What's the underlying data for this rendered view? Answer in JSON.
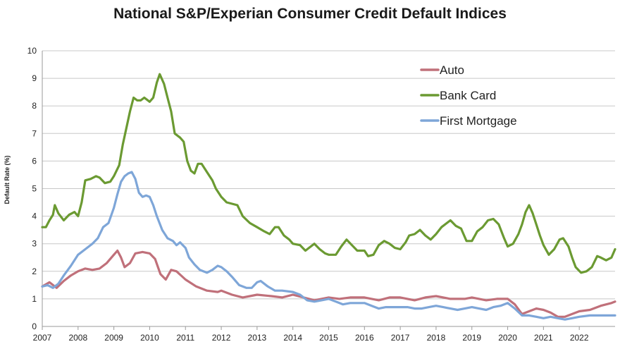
{
  "chart_data": {
    "type": "line",
    "title": "National S&P/Experian Consumer Credit Default Indices",
    "ylabel": "Default Rate (%)",
    "xlabel": "",
    "ylim": [
      0,
      10
    ],
    "xlim": [
      2007,
      2023
    ],
    "yticks": [
      "0",
      "1",
      "2",
      "3",
      "4",
      "5",
      "6",
      "7",
      "8",
      "9",
      "10"
    ],
    "xticks": [
      "2007",
      "2008",
      "2009",
      "2010",
      "2011",
      "2012",
      "2013",
      "2014",
      "2015",
      "2016",
      "2017",
      "2018",
      "2019",
      "2020",
      "2021",
      "2022"
    ],
    "grid": "horizontal",
    "legend_position": "top-right",
    "series": [
      {
        "name": "Auto",
        "color": "#c0707a",
        "points": [
          [
            2007.0,
            1.45
          ],
          [
            2007.2,
            1.6
          ],
          [
            2007.4,
            1.4
          ],
          [
            2007.6,
            1.65
          ],
          [
            2007.8,
            1.85
          ],
          [
            2008.0,
            2.0
          ],
          [
            2008.2,
            2.1
          ],
          [
            2008.4,
            2.05
          ],
          [
            2008.6,
            2.1
          ],
          [
            2008.8,
            2.3
          ],
          [
            2009.0,
            2.6
          ],
          [
            2009.1,
            2.75
          ],
          [
            2009.2,
            2.5
          ],
          [
            2009.3,
            2.15
          ],
          [
            2009.45,
            2.3
          ],
          [
            2009.6,
            2.65
          ],
          [
            2009.8,
            2.7
          ],
          [
            2010.0,
            2.65
          ],
          [
            2010.15,
            2.45
          ],
          [
            2010.3,
            1.9
          ],
          [
            2010.45,
            1.7
          ],
          [
            2010.6,
            2.05
          ],
          [
            2010.75,
            2.0
          ],
          [
            2011.0,
            1.7
          ],
          [
            2011.3,
            1.45
          ],
          [
            2011.6,
            1.3
          ],
          [
            2011.9,
            1.25
          ],
          [
            2012.0,
            1.3
          ],
          [
            2012.3,
            1.15
          ],
          [
            2012.6,
            1.05
          ],
          [
            2012.8,
            1.1
          ],
          [
            2013.0,
            1.15
          ],
          [
            2013.4,
            1.1
          ],
          [
            2013.7,
            1.05
          ],
          [
            2014.0,
            1.15
          ],
          [
            2014.3,
            1.05
          ],
          [
            2014.6,
            0.95
          ],
          [
            2015.0,
            1.05
          ],
          [
            2015.3,
            1.0
          ],
          [
            2015.6,
            1.05
          ],
          [
            2016.0,
            1.05
          ],
          [
            2016.4,
            0.95
          ],
          [
            2016.7,
            1.05
          ],
          [
            2017.0,
            1.05
          ],
          [
            2017.4,
            0.95
          ],
          [
            2017.7,
            1.05
          ],
          [
            2018.0,
            1.1
          ],
          [
            2018.4,
            1.0
          ],
          [
            2018.8,
            1.0
          ],
          [
            2019.0,
            1.05
          ],
          [
            2019.4,
            0.95
          ],
          [
            2019.7,
            1.0
          ],
          [
            2020.0,
            1.0
          ],
          [
            2020.2,
            0.8
          ],
          [
            2020.4,
            0.45
          ],
          [
            2020.6,
            0.55
          ],
          [
            2020.8,
            0.65
          ],
          [
            2021.0,
            0.6
          ],
          [
            2021.2,
            0.5
          ],
          [
            2021.4,
            0.35
          ],
          [
            2021.6,
            0.35
          ],
          [
            2021.8,
            0.45
          ],
          [
            2022.0,
            0.55
          ],
          [
            2022.3,
            0.6
          ],
          [
            2022.6,
            0.75
          ],
          [
            2022.9,
            0.85
          ],
          [
            2023.0,
            0.9
          ]
        ]
      },
      {
        "name": "Bank Card",
        "color": "#6b9a32",
        "points": [
          [
            2007.0,
            3.6
          ],
          [
            2007.1,
            3.6
          ],
          [
            2007.2,
            3.85
          ],
          [
            2007.3,
            4.05
          ],
          [
            2007.35,
            4.4
          ],
          [
            2007.45,
            4.1
          ],
          [
            2007.6,
            3.85
          ],
          [
            2007.75,
            4.05
          ],
          [
            2007.9,
            4.15
          ],
          [
            2008.0,
            4.0
          ],
          [
            2008.1,
            4.5
          ],
          [
            2008.2,
            5.3
          ],
          [
            2008.35,
            5.35
          ],
          [
            2008.5,
            5.45
          ],
          [
            2008.6,
            5.4
          ],
          [
            2008.75,
            5.2
          ],
          [
            2008.9,
            5.25
          ],
          [
            2009.0,
            5.45
          ],
          [
            2009.15,
            5.85
          ],
          [
            2009.25,
            6.6
          ],
          [
            2009.35,
            7.2
          ],
          [
            2009.45,
            7.8
          ],
          [
            2009.55,
            8.3
          ],
          [
            2009.65,
            8.2
          ],
          [
            2009.75,
            8.2
          ],
          [
            2009.85,
            8.3
          ],
          [
            2010.0,
            8.15
          ],
          [
            2010.1,
            8.3
          ],
          [
            2010.2,
            8.85
          ],
          [
            2010.28,
            9.15
          ],
          [
            2010.4,
            8.8
          ],
          [
            2010.5,
            8.3
          ],
          [
            2010.6,
            7.8
          ],
          [
            2010.7,
            7.0
          ],
          [
            2010.85,
            6.85
          ],
          [
            2010.95,
            6.7
          ],
          [
            2011.05,
            6.0
          ],
          [
            2011.15,
            5.65
          ],
          [
            2011.25,
            5.55
          ],
          [
            2011.35,
            5.9
          ],
          [
            2011.45,
            5.9
          ],
          [
            2011.6,
            5.6
          ],
          [
            2011.75,
            5.3
          ],
          [
            2011.85,
            5.0
          ],
          [
            2012.0,
            4.7
          ],
          [
            2012.15,
            4.5
          ],
          [
            2012.3,
            4.45
          ],
          [
            2012.45,
            4.4
          ],
          [
            2012.6,
            4.0
          ],
          [
            2012.8,
            3.75
          ],
          [
            2013.0,
            3.6
          ],
          [
            2013.2,
            3.45
          ],
          [
            2013.35,
            3.35
          ],
          [
            2013.5,
            3.6
          ],
          [
            2013.6,
            3.6
          ],
          [
            2013.75,
            3.3
          ],
          [
            2013.9,
            3.15
          ],
          [
            2014.0,
            3.0
          ],
          [
            2014.2,
            2.95
          ],
          [
            2014.35,
            2.75
          ],
          [
            2014.5,
            2.9
          ],
          [
            2014.6,
            3.0
          ],
          [
            2014.75,
            2.8
          ],
          [
            2014.9,
            2.65
          ],
          [
            2015.0,
            2.6
          ],
          [
            2015.2,
            2.6
          ],
          [
            2015.35,
            2.9
          ],
          [
            2015.5,
            3.15
          ],
          [
            2015.65,
            2.95
          ],
          [
            2015.8,
            2.75
          ],
          [
            2016.0,
            2.75
          ],
          [
            2016.1,
            2.55
          ],
          [
            2016.25,
            2.6
          ],
          [
            2016.4,
            2.95
          ],
          [
            2016.55,
            3.1
          ],
          [
            2016.7,
            3.0
          ],
          [
            2016.85,
            2.85
          ],
          [
            2017.0,
            2.8
          ],
          [
            2017.15,
            3.05
          ],
          [
            2017.25,
            3.3
          ],
          [
            2017.4,
            3.35
          ],
          [
            2017.55,
            3.5
          ],
          [
            2017.7,
            3.3
          ],
          [
            2017.85,
            3.15
          ],
          [
            2018.0,
            3.35
          ],
          [
            2018.15,
            3.6
          ],
          [
            2018.3,
            3.75
          ],
          [
            2018.4,
            3.85
          ],
          [
            2018.55,
            3.65
          ],
          [
            2018.7,
            3.55
          ],
          [
            2018.85,
            3.1
          ],
          [
            2019.0,
            3.1
          ],
          [
            2019.15,
            3.45
          ],
          [
            2019.3,
            3.6
          ],
          [
            2019.45,
            3.85
          ],
          [
            2019.6,
            3.9
          ],
          [
            2019.75,
            3.7
          ],
          [
            2019.9,
            3.2
          ],
          [
            2020.0,
            2.9
          ],
          [
            2020.15,
            3.0
          ],
          [
            2020.3,
            3.35
          ],
          [
            2020.4,
            3.7
          ],
          [
            2020.5,
            4.15
          ],
          [
            2020.6,
            4.4
          ],
          [
            2020.7,
            4.1
          ],
          [
            2020.8,
            3.7
          ],
          [
            2020.9,
            3.3
          ],
          [
            2021.0,
            2.95
          ],
          [
            2021.15,
            2.6
          ],
          [
            2021.3,
            2.8
          ],
          [
            2021.45,
            3.15
          ],
          [
            2021.55,
            3.2
          ],
          [
            2021.7,
            2.9
          ],
          [
            2021.8,
            2.5
          ],
          [
            2021.9,
            2.15
          ],
          [
            2022.05,
            1.95
          ],
          [
            2022.2,
            2.0
          ],
          [
            2022.35,
            2.15
          ],
          [
            2022.5,
            2.55
          ],
          [
            2022.6,
            2.5
          ],
          [
            2022.75,
            2.4
          ],
          [
            2022.9,
            2.5
          ],
          [
            2023.0,
            2.8
          ]
        ]
      },
      {
        "name": "First Mortgage",
        "color": "#7ea6d8",
        "points": [
          [
            2007.0,
            1.45
          ],
          [
            2007.15,
            1.5
          ],
          [
            2007.3,
            1.4
          ],
          [
            2007.45,
            1.55
          ],
          [
            2007.6,
            1.85
          ],
          [
            2007.8,
            2.2
          ],
          [
            2008.0,
            2.6
          ],
          [
            2008.2,
            2.8
          ],
          [
            2008.4,
            3.0
          ],
          [
            2008.55,
            3.2
          ],
          [
            2008.7,
            3.6
          ],
          [
            2008.85,
            3.75
          ],
          [
            2009.0,
            4.3
          ],
          [
            2009.1,
            4.8
          ],
          [
            2009.2,
            5.25
          ],
          [
            2009.3,
            5.45
          ],
          [
            2009.4,
            5.55
          ],
          [
            2009.5,
            5.6
          ],
          [
            2009.6,
            5.35
          ],
          [
            2009.7,
            4.85
          ],
          [
            2009.8,
            4.7
          ],
          [
            2009.9,
            4.75
          ],
          [
            2010.0,
            4.7
          ],
          [
            2010.1,
            4.4
          ],
          [
            2010.2,
            4.0
          ],
          [
            2010.35,
            3.5
          ],
          [
            2010.5,
            3.2
          ],
          [
            2010.65,
            3.1
          ],
          [
            2010.75,
            2.95
          ],
          [
            2010.85,
            3.05
          ],
          [
            2011.0,
            2.85
          ],
          [
            2011.1,
            2.5
          ],
          [
            2011.25,
            2.25
          ],
          [
            2011.4,
            2.05
          ],
          [
            2011.6,
            1.95
          ],
          [
            2011.75,
            2.05
          ],
          [
            2011.9,
            2.2
          ],
          [
            2012.0,
            2.15
          ],
          [
            2012.15,
            2.0
          ],
          [
            2012.3,
            1.8
          ],
          [
            2012.5,
            1.5
          ],
          [
            2012.7,
            1.4
          ],
          [
            2012.85,
            1.4
          ],
          [
            2013.0,
            1.6
          ],
          [
            2013.1,
            1.65
          ],
          [
            2013.3,
            1.45
          ],
          [
            2013.5,
            1.3
          ],
          [
            2013.7,
            1.3
          ],
          [
            2014.0,
            1.25
          ],
          [
            2014.2,
            1.15
          ],
          [
            2014.4,
            0.95
          ],
          [
            2014.6,
            0.9
          ],
          [
            2014.8,
            0.95
          ],
          [
            2015.0,
            1.0
          ],
          [
            2015.2,
            0.9
          ],
          [
            2015.4,
            0.8
          ],
          [
            2015.6,
            0.85
          ],
          [
            2015.8,
            0.85
          ],
          [
            2016.0,
            0.85
          ],
          [
            2016.2,
            0.75
          ],
          [
            2016.4,
            0.65
          ],
          [
            2016.6,
            0.7
          ],
          [
            2016.8,
            0.7
          ],
          [
            2017.0,
            0.7
          ],
          [
            2017.2,
            0.7
          ],
          [
            2017.4,
            0.65
          ],
          [
            2017.6,
            0.65
          ],
          [
            2017.8,
            0.7
          ],
          [
            2018.0,
            0.75
          ],
          [
            2018.2,
            0.7
          ],
          [
            2018.4,
            0.65
          ],
          [
            2018.6,
            0.6
          ],
          [
            2018.8,
            0.65
          ],
          [
            2019.0,
            0.7
          ],
          [
            2019.2,
            0.65
          ],
          [
            2019.4,
            0.6
          ],
          [
            2019.6,
            0.7
          ],
          [
            2019.8,
            0.75
          ],
          [
            2020.0,
            0.85
          ],
          [
            2020.2,
            0.65
          ],
          [
            2020.4,
            0.4
          ],
          [
            2020.6,
            0.4
          ],
          [
            2020.8,
            0.35
          ],
          [
            2021.0,
            0.3
          ],
          [
            2021.2,
            0.35
          ],
          [
            2021.4,
            0.3
          ],
          [
            2021.6,
            0.25
          ],
          [
            2021.8,
            0.3
          ],
          [
            2022.0,
            0.35
          ],
          [
            2022.3,
            0.4
          ],
          [
            2022.6,
            0.4
          ],
          [
            2022.8,
            0.4
          ],
          [
            2023.0,
            0.4
          ]
        ]
      }
    ]
  }
}
